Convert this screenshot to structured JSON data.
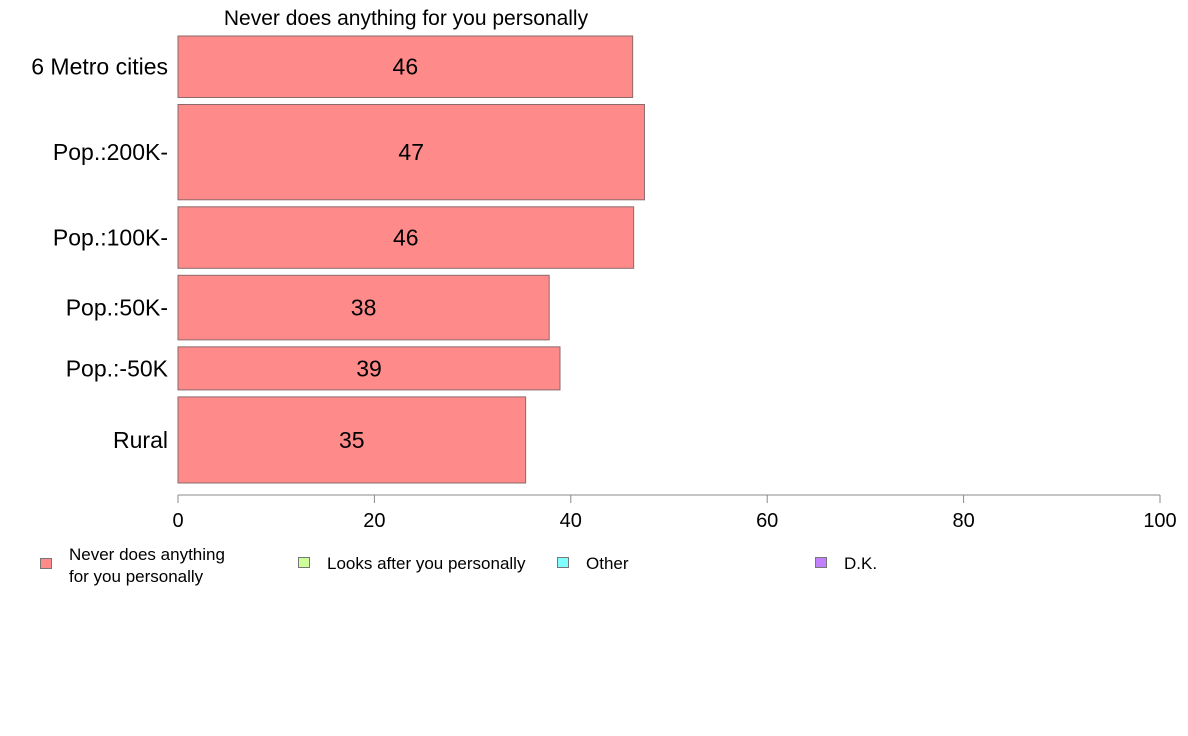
{
  "chart_data": {
    "type": "bar",
    "orientation": "horizontal",
    "title": "Never does anything for you personally",
    "categories": [
      "6 Metro cities",
      "Pop.:200K-",
      "Pop.:100K-",
      "Pop.:50K-",
      "Pop.:-50K",
      "Rural"
    ],
    "series": [
      {
        "name": "Never does anything\nfor you personally",
        "color": "#ff8a8a",
        "values": [
          46.3,
          47.5,
          46.4,
          37.8,
          38.9,
          35.4
        ],
        "labels": [
          "46",
          "47",
          "46",
          "38",
          "39",
          "35"
        ]
      }
    ],
    "xlim": [
      0,
      100
    ],
    "xticks": [
      0,
      20,
      40,
      60,
      80,
      100
    ],
    "category_weights": [
      1.0,
      1.55,
      1.0,
      1.05,
      0.7,
      1.4
    ],
    "legend": {
      "placement": "bottom",
      "items": [
        {
          "label": "Never does anything\nfor you personally",
          "color": "#ff8a8a"
        },
        {
          "label": "Looks after you personally",
          "color": "#ccff99"
        },
        {
          "label": "Other",
          "color": "#80ffff"
        },
        {
          "label": "D.K.",
          "color": "#c080ff"
        }
      ]
    }
  }
}
